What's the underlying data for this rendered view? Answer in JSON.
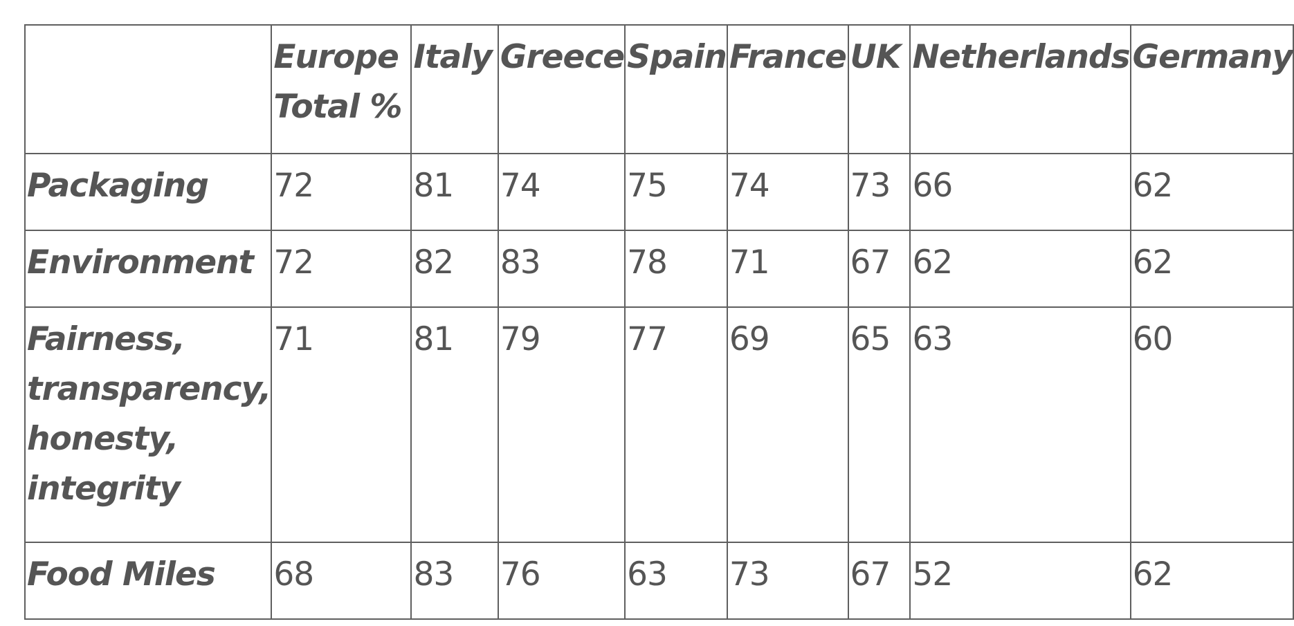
{
  "chart_data": {
    "type": "table",
    "columns": [
      "",
      "Europe Total %",
      "Italy",
      "Greece",
      "Spain",
      "France",
      "UK",
      "Netherlands",
      "Germany"
    ],
    "header_lines": {
      "europe_total": [
        "Europe",
        "Total %"
      ]
    },
    "rows": [
      {
        "label": "Packaging",
        "label_lines": [
          "Packaging"
        ],
        "values": [
          "72",
          "81",
          "74",
          "75",
          "74",
          "73",
          "66",
          "62"
        ]
      },
      {
        "label": "Environment",
        "label_lines": [
          "Environment"
        ],
        "values": [
          "72",
          "82",
          "83",
          "78",
          "71",
          "67",
          "62",
          "62"
        ]
      },
      {
        "label": "Fairness, transparency, honesty, integrity",
        "label_lines": [
          "Fairness,",
          "transparency,",
          "honesty,",
          "integrity"
        ],
        "values": [
          "71",
          "81",
          "79",
          "77",
          "69",
          "65",
          "63",
          "60"
        ]
      },
      {
        "label": "Food Miles",
        "label_lines": [
          "Food Miles"
        ],
        "values": [
          "68",
          "83",
          "76",
          "63",
          "73",
          "67",
          "52",
          "62"
        ]
      }
    ]
  }
}
